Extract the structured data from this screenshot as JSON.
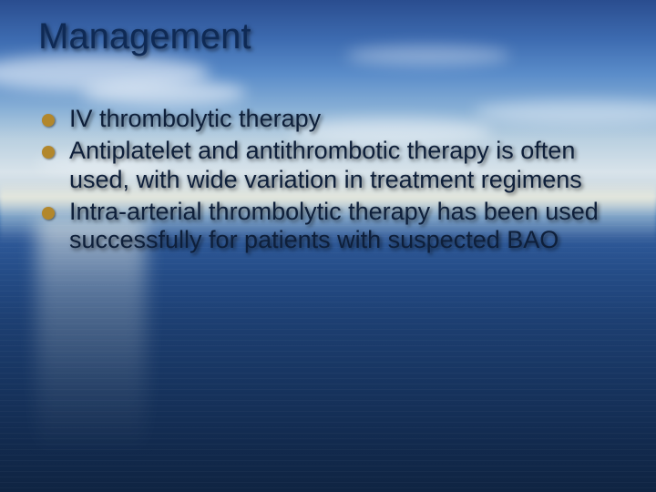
{
  "slide": {
    "title": "Management",
    "title_color": "#0f2a55",
    "bullet_color": "#b2872c",
    "body_text_color": "#0e1f3a",
    "title_fontsize": 40,
    "body_fontsize": 27,
    "background": {
      "sky_top": "#2a4d8f",
      "sky_mid": "#b8cfe0",
      "sea_top": "#2f5a9a",
      "sea_bottom": "#0f2442",
      "cloud_color": "rgba(255,255,255,0.55)"
    },
    "bullets": [
      {
        "text": "IV thrombolytic therapy"
      },
      {
        "text": "Antiplatelet and antithrombotic therapy is often used, with wide variation in treatment regimens"
      },
      {
        "text": "Intra-arterial thrombolytic therapy has been used successfully for patients with suspected BAO"
      }
    ]
  }
}
